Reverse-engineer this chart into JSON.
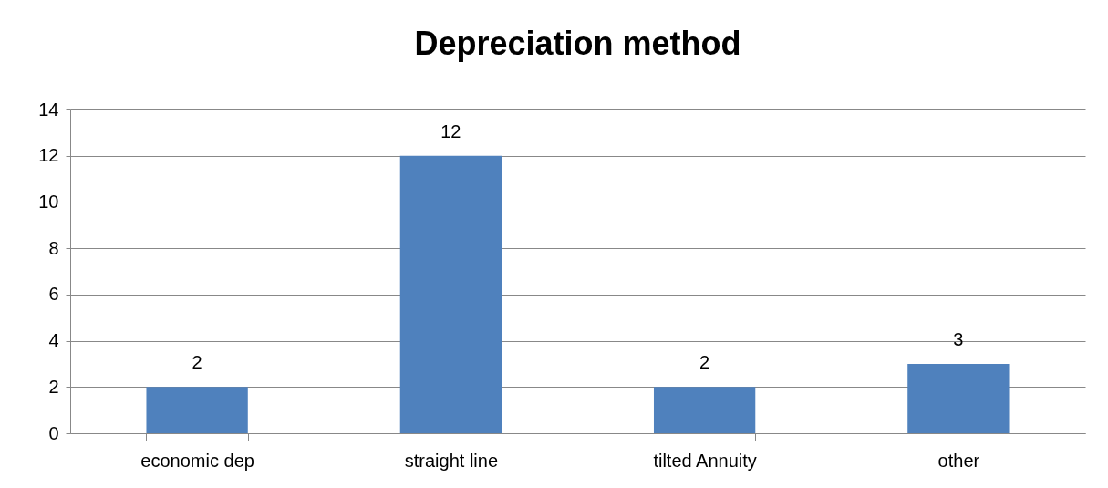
{
  "chart_data": {
    "type": "bar",
    "title": "Depreciation method",
    "categories": [
      "economic dep",
      "straight line",
      "tilted Annuity",
      "other"
    ],
    "values": [
      2,
      12,
      2,
      3
    ],
    "color": "#4f81bd",
    "ylim": [
      0,
      14
    ],
    "yticks": [
      0,
      2,
      4,
      6,
      8,
      10,
      12,
      14
    ],
    "grid": "y",
    "data_labels": true
  }
}
